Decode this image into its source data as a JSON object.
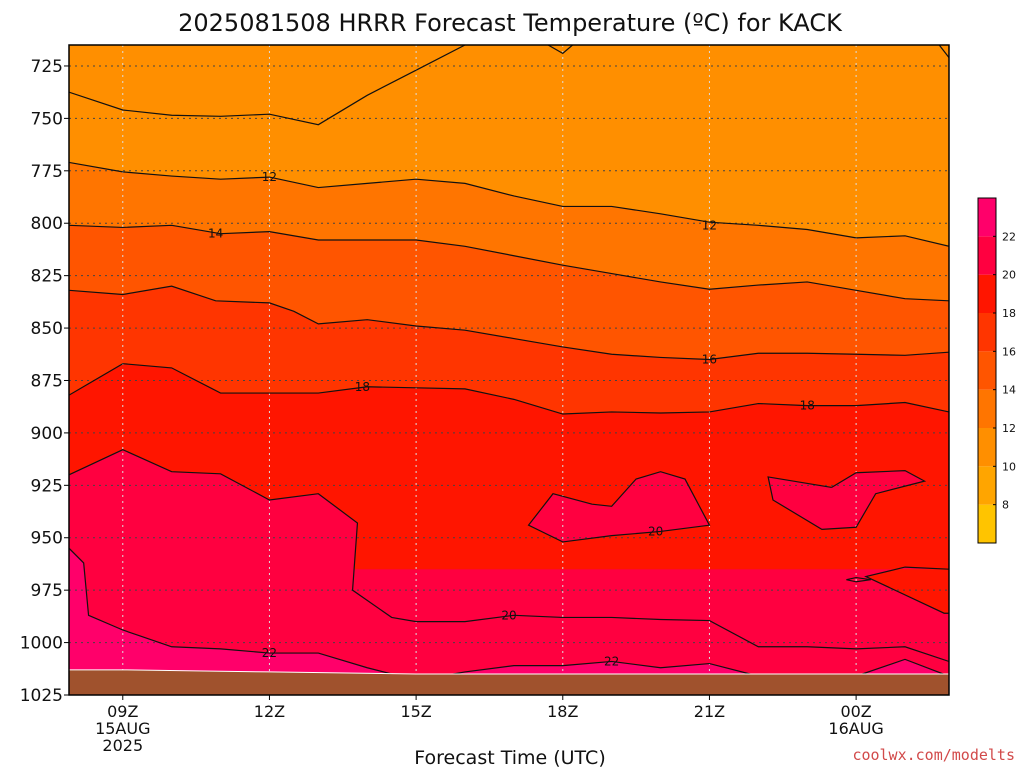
{
  "chart_data": {
    "type": "heatmap",
    "title": "2025081508 HRRR Forecast Temperature (ºC) for KACK",
    "xlabel": "Forecast Time (UTC)",
    "ylabel": "",
    "credit": "coolwx.com/modelts",
    "y_axis": {
      "scale": "pressure (inverted)",
      "ylim": [
        1025,
        715
      ],
      "ticks": [
        "725",
        "750",
        "775",
        "800",
        "825",
        "850",
        "875",
        "900",
        "925",
        "950",
        "975",
        "1000",
        "1025"
      ]
    },
    "x_axis": {
      "xlim_hours": [
        7.9,
        25.9
      ],
      "ticks": [
        {
          "label": "09Z",
          "hour": 9,
          "sub": [
            "15AUG",
            "2025"
          ]
        },
        {
          "label": "12Z",
          "hour": 12,
          "sub": []
        },
        {
          "label": "15Z",
          "hour": 15,
          "sub": []
        },
        {
          "label": "18Z",
          "hour": 18,
          "sub": []
        },
        {
          "label": "21Z",
          "hour": 21,
          "sub": []
        },
        {
          "label": "00Z",
          "hour": 24,
          "sub": [
            "16AUG"
          ]
        }
      ]
    },
    "grid": true,
    "legend": "colorbar-right",
    "colorbar": {
      "levels": [
        6,
        8,
        10,
        12,
        14,
        16,
        18,
        20,
        22,
        24
      ],
      "tick_labels": [
        "8",
        "10",
        "12",
        "14",
        "16",
        "18",
        "20",
        "22"
      ],
      "colors": [
        "#ffc400",
        "#ffa500",
        "#ff8f00",
        "#ff7500",
        "#ff5500",
        "#ff3500",
        "#ff1500",
        "#ff0040",
        "#ff006a"
      ]
    },
    "contours": [
      {
        "value": 10,
        "points": [
          [
            7.9,
            737.5
          ],
          [
            9,
            746
          ],
          [
            10,
            748.5
          ],
          [
            11,
            749
          ],
          [
            12,
            748
          ],
          [
            13,
            753
          ],
          [
            14,
            739
          ],
          [
            15,
            727
          ],
          [
            16,
            715
          ]
        ]
      },
      {
        "value": 10,
        "points": [
          [
            25.7,
            715
          ],
          [
            25.9,
            721
          ]
        ]
      },
      {
        "value": 10,
        "points": [
          [
            17.7,
            715
          ],
          [
            18,
            719
          ],
          [
            18.2,
            715
          ]
        ]
      },
      {
        "value": 12,
        "points": [
          [
            7.9,
            771
          ],
          [
            9,
            775.5
          ],
          [
            10,
            777.5
          ],
          [
            11,
            779
          ],
          [
            12,
            778
          ],
          [
            13,
            783
          ],
          [
            14,
            781
          ],
          [
            15,
            779
          ],
          [
            16,
            781
          ],
          [
            17,
            787
          ],
          [
            18,
            792
          ],
          [
            19,
            792
          ],
          [
            20,
            795.5
          ],
          [
            21,
            799.5
          ],
          [
            22,
            801
          ],
          [
            23,
            803
          ],
          [
            24,
            807
          ],
          [
            25,
            806
          ],
          [
            25.9,
            811
          ]
        ]
      },
      {
        "value": 14,
        "points": [
          [
            7.9,
            801
          ],
          [
            9,
            802
          ],
          [
            10,
            801
          ],
          [
            11,
            805
          ],
          [
            12,
            804
          ],
          [
            13,
            808
          ],
          [
            14,
            808
          ],
          [
            15,
            808
          ],
          [
            16,
            811
          ],
          [
            17,
            815.5
          ],
          [
            18,
            820
          ],
          [
            19,
            824
          ],
          [
            20,
            828
          ],
          [
            21,
            831.5
          ],
          [
            22,
            829.5
          ],
          [
            23,
            828
          ],
          [
            24,
            832
          ],
          [
            25,
            836
          ],
          [
            25.9,
            837
          ]
        ]
      },
      {
        "value": 16,
        "points": [
          [
            7.9,
            832
          ],
          [
            9,
            834
          ],
          [
            10,
            830
          ],
          [
            10.9,
            837
          ],
          [
            12,
            838
          ],
          [
            12.5,
            842
          ],
          [
            13,
            848
          ],
          [
            14,
            846
          ],
          [
            15,
            849
          ],
          [
            16,
            851
          ],
          [
            17,
            855
          ],
          [
            18,
            859
          ],
          [
            19,
            862.5
          ],
          [
            20,
            864
          ],
          [
            21,
            865
          ],
          [
            22,
            862
          ],
          [
            23,
            862
          ],
          [
            24,
            862.5
          ],
          [
            25,
            863
          ],
          [
            25.9,
            861.5
          ]
        ]
      },
      {
        "value": 18,
        "points": [
          [
            7.9,
            882
          ],
          [
            9,
            867
          ],
          [
            10,
            869
          ],
          [
            11,
            881
          ],
          [
            12,
            881
          ],
          [
            13,
            881
          ],
          [
            14,
            878
          ],
          [
            15,
            878.5
          ],
          [
            16,
            879
          ],
          [
            17,
            884
          ],
          [
            18,
            891
          ],
          [
            19,
            890
          ],
          [
            20,
            890.5
          ],
          [
            21,
            890
          ],
          [
            22,
            886
          ],
          [
            23,
            887
          ],
          [
            24,
            887
          ],
          [
            25,
            885.5
          ],
          [
            25.9,
            890
          ]
        ]
      },
      {
        "value": 20,
        "points": [
          [
            7.9,
            920
          ],
          [
            9,
            908
          ],
          [
            10,
            918.5
          ],
          [
            11,
            919.5
          ],
          [
            12,
            932
          ],
          [
            13,
            929
          ],
          [
            13.8,
            943
          ],
          [
            13.7,
            975
          ],
          [
            14.5,
            988
          ],
          [
            15,
            990
          ],
          [
            16,
            990
          ],
          [
            17,
            987
          ],
          [
            18,
            988
          ],
          [
            19,
            988
          ],
          [
            20,
            989
          ],
          [
            21,
            989.5
          ],
          [
            22,
            1002
          ],
          [
            23,
            1002
          ],
          [
            24,
            1003
          ],
          [
            25,
            1002
          ],
          [
            25.9,
            1009
          ]
        ]
      },
      {
        "value": 20,
        "points": [
          [
            18.6,
            934
          ],
          [
            17.8,
            929
          ],
          [
            17.3,
            944
          ],
          [
            18,
            952
          ],
          [
            19,
            949
          ],
          [
            20,
            947
          ],
          [
            21,
            944
          ],
          [
            20.5,
            922
          ],
          [
            20,
            918.5
          ],
          [
            19.5,
            922
          ],
          [
            19,
            935
          ],
          [
            18.6,
            934
          ]
        ]
      },
      {
        "value": 20,
        "points": [
          [
            23.5,
            926
          ],
          [
            22.2,
            921
          ],
          [
            22.3,
            932
          ],
          [
            23.3,
            946
          ],
          [
            24,
            945
          ],
          [
            24.4,
            929
          ],
          [
            25.4,
            923
          ],
          [
            25,
            918
          ],
          [
            24,
            919
          ],
          [
            23.5,
            926
          ]
        ]
      },
      {
        "value": 20,
        "points": [
          [
            25.9,
            965
          ],
          [
            25,
            964
          ],
          [
            24.2,
            968.5
          ],
          [
            25.8,
            986
          ],
          [
            25.9,
            986
          ]
        ]
      },
      {
        "value": 20,
        "points": [
          [
            23.8,
            970
          ],
          [
            24.0,
            969
          ],
          [
            24.3,
            970
          ],
          [
            24.0,
            971
          ],
          [
            23.8,
            970
          ]
        ]
      },
      {
        "value": 22,
        "points": [
          [
            7.9,
            955
          ],
          [
            8.2,
            962
          ],
          [
            8.3,
            987
          ],
          [
            9,
            994
          ],
          [
            10,
            1002
          ],
          [
            11,
            1003
          ],
          [
            12,
            1005
          ],
          [
            13,
            1005
          ],
          [
            14,
            1012
          ],
          [
            15,
            1018
          ],
          [
            16,
            1014
          ],
          [
            17,
            1011
          ],
          [
            18,
            1011
          ],
          [
            19,
            1009
          ],
          [
            20,
            1012
          ],
          [
            21,
            1010
          ],
          [
            22,
            1016
          ],
          [
            23,
            1019
          ],
          [
            24,
            1016
          ],
          [
            25,
            1008
          ],
          [
            25.9,
            1016
          ]
        ]
      }
    ],
    "contour_labels": [
      {
        "value": "12",
        "hour": 12.0,
        "pressure": 778
      },
      {
        "value": "14",
        "hour": 10.9,
        "pressure": 805
      },
      {
        "value": "12",
        "hour": 21.0,
        "pressure": 801
      },
      {
        "value": "16",
        "hour": 21.0,
        "pressure": 865
      },
      {
        "value": "18",
        "hour": 13.9,
        "pressure": 878
      },
      {
        "value": "18",
        "hour": 23.0,
        "pressure": 887
      },
      {
        "value": "20",
        "hour": 19.9,
        "pressure": 947
      },
      {
        "value": "20",
        "hour": 16.9,
        "pressure": 987
      },
      {
        "value": "22",
        "hour": 12.0,
        "pressure": 1005
      },
      {
        "value": "22",
        "hour": 19.0,
        "pressure": 1009
      }
    ],
    "ground": {
      "color": "#a0522d",
      "surface_pressure": [
        [
          7.9,
          1013
        ],
        [
          9,
          1013
        ],
        [
          12,
          1014
        ],
        [
          15,
          1015
        ],
        [
          18,
          1015
        ],
        [
          21,
          1015
        ],
        [
          24,
          1015
        ],
        [
          25.9,
          1015
        ]
      ]
    }
  }
}
